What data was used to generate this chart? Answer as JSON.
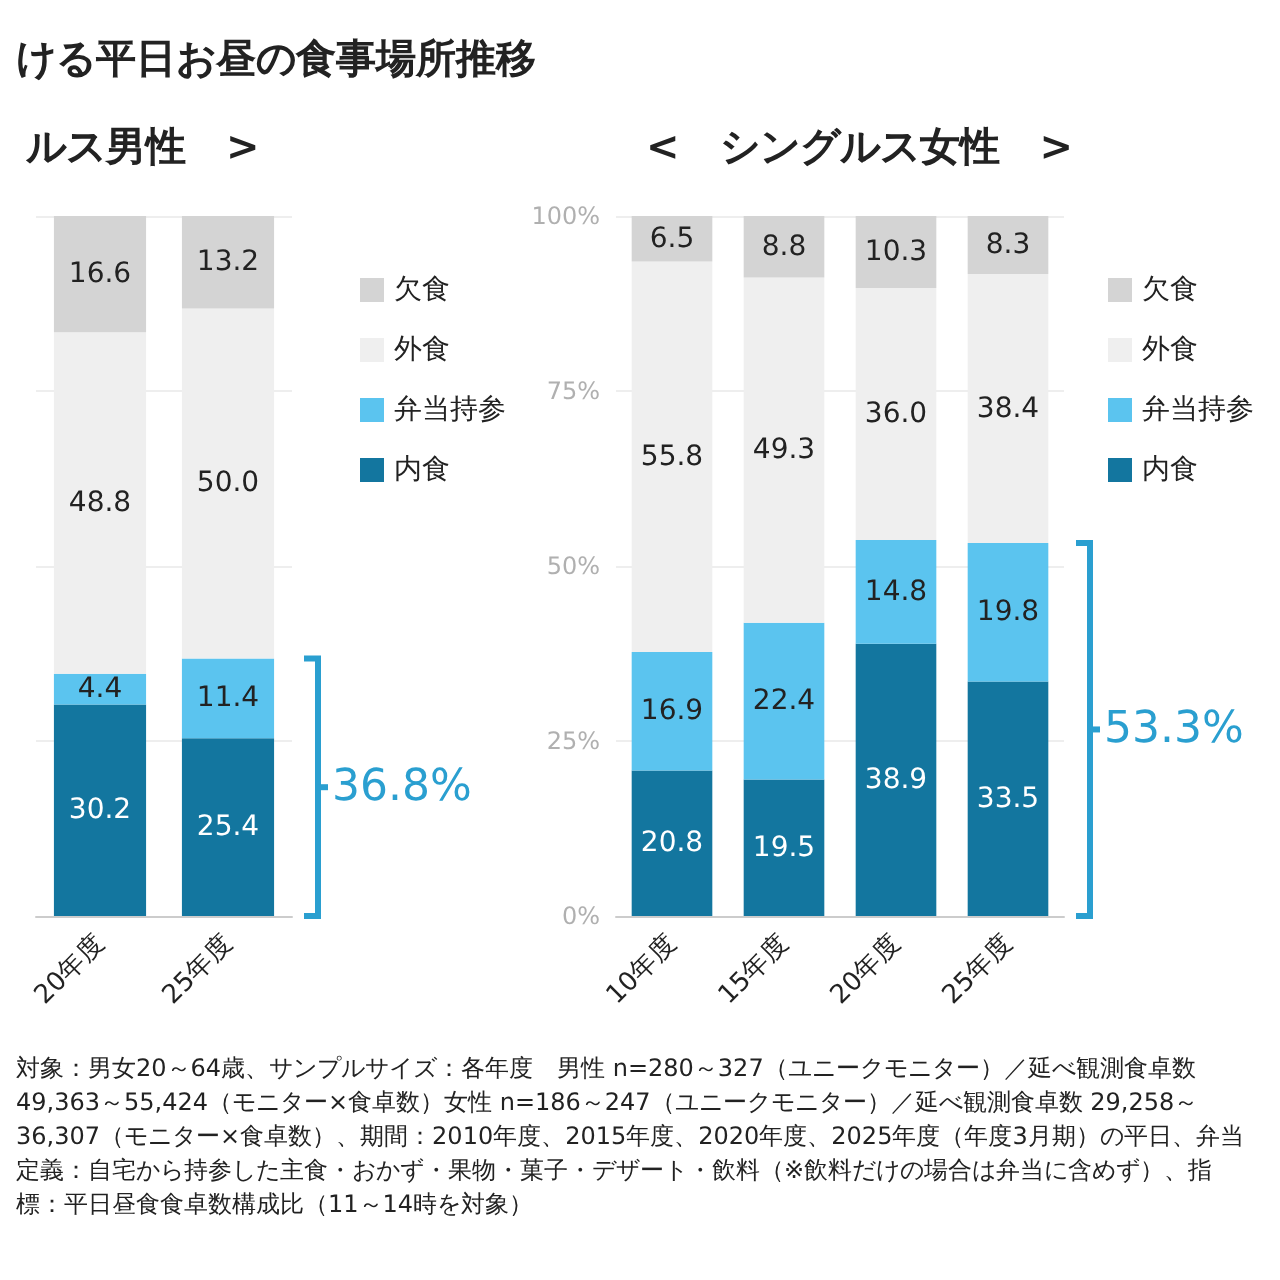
{
  "chart_data": [
    {
      "type": "bar",
      "title": "ける平日お昼の食事場所推移",
      "subtitle": "ルス男性　>",
      "categories": [
        "20年度",
        "25年度"
      ],
      "stacked": true,
      "series": [
        {
          "name": "内食",
          "color": "#13769f",
          "values": [
            30.2,
            25.4
          ],
          "value_labels": [
            "30.2",
            "25.4"
          ]
        },
        {
          "name": "弁当持参",
          "color": "#5bc4ef",
          "values": [
            4.4,
            11.4
          ],
          "value_labels": [
            "4.4",
            "11.4"
          ]
        },
        {
          "name": "外食",
          "color": "#efefef",
          "values": [
            48.8,
            50.0
          ],
          "value_labels": [
            "48.8",
            "50.0"
          ]
        },
        {
          "name": "欠食",
          "color": "#d4d4d4",
          "values": [
            16.6,
            13.2
          ],
          "value_labels": [
            "16.6",
            "13.2"
          ]
        }
      ],
      "ylim": [
        0,
        100
      ],
      "yticks": [
        0,
        25,
        50,
        75,
        100
      ],
      "grid": "y",
      "legend": "right",
      "tick_labels": "x",
      "annotations": [
        "36.8%",
        "対象：男女20～64歳、サンプルサイズ：各年度　男性 n=280～327（ユニークモニター）／延べ観測食卓数 49,363～55,424（モニター×食卓数）女性 n=186～247（ユニークモニター）／延べ観測食卓数 29,258～36,307（モニター×食卓数）、期間：2010年度、2015年度、2020年度、2025年度（年度3月期）の平日、弁当定義：自宅から持参した主食・おかず・果物・菓子・デザート・飲料（※飲料だけの場合は弁当に含めず）、指標：平日昼食食卓数構成比（11～14時を対象）"
      ]
    },
    {
      "type": "bar",
      "title": "<　シングルス女性　>",
      "categories": [
        "10年度",
        "15年度",
        "20年度",
        "25年度"
      ],
      "stacked": true,
      "series": [
        {
          "name": "内食",
          "color": "#13769f",
          "values": [
            20.8,
            19.5,
            38.9,
            33.5
          ],
          "value_labels": [
            "20.8",
            "19.5",
            "38.9",
            "33.5"
          ]
        },
        {
          "name": "弁当持参",
          "color": "#5bc4ef",
          "values": [
            16.9,
            22.4,
            14.8,
            19.8
          ],
          "value_labels": [
            "16.9",
            "22.4",
            "14.8",
            "19.8"
          ]
        },
        {
          "name": "外食",
          "color": "#efefef",
          "values": [
            55.8,
            49.3,
            36.0,
            38.4
          ],
          "value_labels": [
            "55.8",
            "49.3",
            "36.0",
            "38.4"
          ]
        },
        {
          "name": "欠食",
          "color": "#d4d4d4",
          "values": [
            6.5,
            8.8,
            10.3,
            8.3
          ],
          "value_labels": [
            "6.5",
            "8.8",
            "10.3",
            "8.3"
          ]
        }
      ],
      "ylim": [
        0,
        100
      ],
      "yticks": [
        {
          "value": 0,
          "label": "0%"
        },
        {
          "value": 25,
          "label": "25%"
        },
        {
          "value": 50,
          "label": "50%"
        },
        {
          "value": 75,
          "label": "75%"
        },
        {
          "value": 100,
          "label": "100%"
        }
      ],
      "grid": "y",
      "legend": "right",
      "annotations": [
        "53.3%"
      ]
    }
  ]
}
